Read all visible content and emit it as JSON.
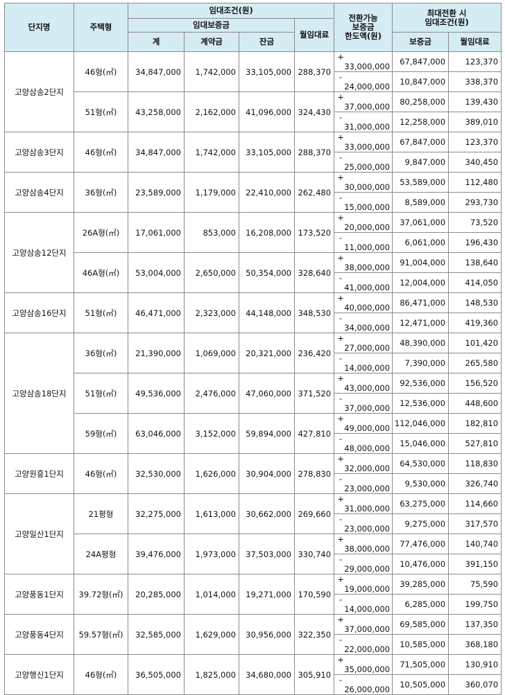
{
  "headers": {
    "complex": "단지명",
    "house_type": "주택형",
    "rent_conditions": "임대조건(원)",
    "rent_deposit": "임대보증금",
    "total": "계",
    "down_payment": "계약금",
    "balance": "잔금",
    "monthly_rent": "월임대료",
    "conversion_limit_line1": "전환가능",
    "conversion_limit_line2": "보증금",
    "conversion_limit_line3": "한도액(원)",
    "max_conversion_line1": "최대전환 시",
    "max_conversion_line2": "임대조건(원)",
    "deposit": "보증금",
    "monthly_rent2": "월임대료"
  },
  "rows": [
    {
      "complex": "고양삼송2단지",
      "complex_span": 4,
      "type": "46형(㎡)",
      "type_span": 2,
      "total": "34,847,000",
      "down": "1,742,000",
      "balance": "33,105,000",
      "rent": "288,370",
      "sign": "+",
      "conv": "33,000,000",
      "dep": "67,847,000",
      "mrent": "123,370"
    },
    {
      "sign": "-",
      "conv": "24,000,000",
      "dep": "10,847,000",
      "mrent": "338,370"
    },
    {
      "type": "51형(㎡)",
      "type_span": 2,
      "total": "43,258,000",
      "down": "2,162,000",
      "balance": "41,096,000",
      "rent": "324,430",
      "sign": "+",
      "conv": "37,000,000",
      "dep": "80,258,000",
      "mrent": "139,430"
    },
    {
      "sign": "-",
      "conv": "31,000,000",
      "dep": "12,258,000",
      "mrent": "389,010"
    },
    {
      "complex": "고양삼송3단지",
      "complex_span": 2,
      "type": "46형(㎡)",
      "type_span": 2,
      "total": "34,847,000",
      "down": "1,742,000",
      "balance": "33,105,000",
      "rent": "288,370",
      "sign": "+",
      "conv": "33,000,000",
      "dep": "67,847,000",
      "mrent": "123,370"
    },
    {
      "sign": "-",
      "conv": "25,000,000",
      "dep": "9,847,000",
      "mrent": "340,450"
    },
    {
      "complex": "고양삼송4단지",
      "complex_span": 2,
      "type": "36형(㎡)",
      "type_span": 2,
      "total": "23,589,000",
      "down": "1,179,000",
      "balance": "22,410,000",
      "rent": "262,480",
      "sign": "+",
      "conv": "30,000,000",
      "dep": "53,589,000",
      "mrent": "112,480"
    },
    {
      "sign": "-",
      "conv": "15,000,000",
      "dep": "8,589,000",
      "mrent": "293,730"
    },
    {
      "complex": "고양삼송12단지",
      "complex_span": 4,
      "type": "26A형(㎡)",
      "type_span": 2,
      "total": "17,061,000",
      "down": "853,000",
      "balance": "16,208,000",
      "rent": "173,520",
      "sign": "+",
      "conv": "20,000,000",
      "dep": "37,061,000",
      "mrent": "73,520"
    },
    {
      "sign": "-",
      "conv": "11,000,000",
      "dep": "6,061,000",
      "mrent": "196,430"
    },
    {
      "type": "46A형(㎡)",
      "type_span": 2,
      "total": "53,004,000",
      "down": "2,650,000",
      "balance": "50,354,000",
      "rent": "328,640",
      "sign": "+",
      "conv": "38,000,000",
      "dep": "91,004,000",
      "mrent": "138,640"
    },
    {
      "sign": "-",
      "conv": "41,000,000",
      "dep": "12,004,000",
      "mrent": "414,050"
    },
    {
      "complex": "고양삼송16단지",
      "complex_span": 2,
      "type": "51형(㎡)",
      "type_span": 2,
      "total": "46,471,000",
      "down": "2,323,000",
      "balance": "44,148,000",
      "rent": "348,530",
      "sign": "+",
      "conv": "40,000,000",
      "dep": "86,471,000",
      "mrent": "148,530"
    },
    {
      "sign": "-",
      "conv": "34,000,000",
      "dep": "12,471,000",
      "mrent": "419,360"
    },
    {
      "complex": "고양삼송18단지",
      "complex_span": 6,
      "type": "36형(㎡)",
      "type_span": 2,
      "total": "21,390,000",
      "down": "1,069,000",
      "balance": "20,321,000",
      "rent": "236,420",
      "sign": "+",
      "conv": "27,000,000",
      "dep": "48,390,000",
      "mrent": "101,420"
    },
    {
      "sign": "-",
      "conv": "14,000,000",
      "dep": "7,390,000",
      "mrent": "265,580"
    },
    {
      "type": "51형(㎡)",
      "type_span": 2,
      "total": "49,536,000",
      "down": "2,476,000",
      "balance": "47,060,000",
      "rent": "371,520",
      "sign": "+",
      "conv": "43,000,000",
      "dep": "92,536,000",
      "mrent": "156,520"
    },
    {
      "sign": "-",
      "conv": "37,000,000",
      "dep": "12,536,000",
      "mrent": "448,600"
    },
    {
      "type": "59형(㎡)",
      "type_span": 2,
      "total": "63,046,000",
      "down": "3,152,000",
      "balance": "59,894,000",
      "rent": "427,810",
      "sign": "+",
      "conv": "49,000,000",
      "dep": "112,046,000",
      "mrent": "182,810"
    },
    {
      "sign": "-",
      "conv": "48,000,000",
      "dep": "15,046,000",
      "mrent": "527,810"
    },
    {
      "complex": "고양원흥1단지",
      "complex_span": 2,
      "type": "46형(㎡)",
      "type_span": 2,
      "total": "32,530,000",
      "down": "1,626,000",
      "balance": "30,904,000",
      "rent": "278,830",
      "sign": "+",
      "conv": "32,000,000",
      "dep": "64,530,000",
      "mrent": "118,830"
    },
    {
      "sign": "-",
      "conv": "23,000,000",
      "dep": "9,530,000",
      "mrent": "326,740"
    },
    {
      "complex": "고양일산1단지",
      "complex_span": 4,
      "type": "21평형",
      "type_span": 2,
      "total": "32,275,000",
      "down": "1,613,000",
      "balance": "30,662,000",
      "rent": "269,660",
      "sign": "+",
      "conv": "31,000,000",
      "dep": "63,275,000",
      "mrent": "114,660"
    },
    {
      "sign": "-",
      "conv": "23,000,000",
      "dep": "9,275,000",
      "mrent": "317,570"
    },
    {
      "type": "24A평형",
      "type_span": 2,
      "total": "39,476,000",
      "down": "1,973,000",
      "balance": "37,503,000",
      "rent": "330,740",
      "sign": "+",
      "conv": "38,000,000",
      "dep": "77,476,000",
      "mrent": "140,740"
    },
    {
      "sign": "-",
      "conv": "29,000,000",
      "dep": "10,476,000",
      "mrent": "391,150"
    },
    {
      "complex": "고양풍동1단지",
      "complex_span": 2,
      "type": "39.72형(㎡)",
      "type_span": 2,
      "total": "20,285,000",
      "down": "1,014,000",
      "balance": "19,271,000",
      "rent": "170,590",
      "sign": "+",
      "conv": "19,000,000",
      "dep": "39,285,000",
      "mrent": "75,590"
    },
    {
      "sign": "-",
      "conv": "14,000,000",
      "dep": "6,285,000",
      "mrent": "199,750"
    },
    {
      "complex": "고양풍동4단지",
      "complex_span": 2,
      "type": "59.57형(㎡)",
      "type_span": 2,
      "total": "32,585,000",
      "down": "1,629,000",
      "balance": "30,956,000",
      "rent": "322,350",
      "sign": "+",
      "conv": "37,000,000",
      "dep": "69,585,000",
      "mrent": "137,350"
    },
    {
      "sign": "-",
      "conv": "22,000,000",
      "dep": "10,585,000",
      "mrent": "368,180"
    },
    {
      "complex": "고양행신1단지",
      "complex_span": 2,
      "type": "46형(㎡)",
      "type_span": 2,
      "total": "36,505,000",
      "down": "1,825,000",
      "balance": "34,680,000",
      "rent": "305,910",
      "sign": "+",
      "conv": "35,000,000",
      "dep": "71,505,000",
      "mrent": "130,910"
    },
    {
      "sign": "-",
      "conv": "26,000,000",
      "dep": "10,505,000",
      "mrent": "360,070"
    }
  ]
}
